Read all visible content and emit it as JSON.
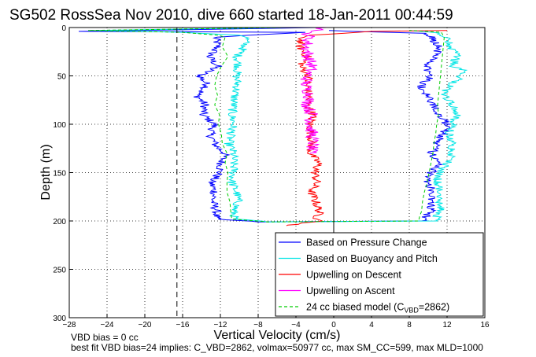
{
  "chart_data": {
    "type": "line",
    "title": "SG502 RossSea Nov 2010, dive 660 started 18-Jan-2011 00:44:59",
    "xlabel": "Vertical Velocity (cm/s)",
    "ylabel": "Depth (m)",
    "xlim": [
      -28,
      16
    ],
    "ylim": [
      300,
      0
    ],
    "y_reversed": true,
    "grid": true,
    "x_ticks": [
      -28,
      -24,
      -20,
      -16,
      -12,
      -8,
      -4,
      0,
      4,
      8,
      12,
      16
    ],
    "y_ticks": [
      0,
      50,
      100,
      150,
      200,
      250,
      300
    ],
    "reference_lines": [
      {
        "axis": "x",
        "value": -16.6,
        "style": "dashed",
        "color": "#000000"
      },
      {
        "axis": "x",
        "value": 0,
        "style": "solid",
        "color": "#000000"
      }
    ],
    "legend_position": "bottom-right",
    "legend": [
      {
        "label": "Based on Pressure Change",
        "color": "#0000ff",
        "style": "solid"
      },
      {
        "label": "Based on Buoyancy and Pitch",
        "color": "#00e5e5",
        "style": "solid"
      },
      {
        "label": "Upwelling on Descent",
        "color": "#ff0000",
        "style": "solid"
      },
      {
        "label": "Upwelling on Ascent",
        "color": "#ff00ff",
        "style": "solid"
      },
      {
        "label_main": "24 cc biased model (C",
        "label_sub": "VBD",
        "label_end": "=2862)",
        "color": "#00cc00",
        "style": "dashed"
      }
    ],
    "series": [
      {
        "color": "#0000ff",
        "y": [
          0,
          4,
          5,
          8,
          10,
          20,
          30,
          40,
          50,
          60,
          70,
          80,
          90,
          100,
          110,
          120,
          125,
          130,
          140,
          150,
          160,
          170,
          180,
          190,
          198,
          201,
          200,
          195,
          190,
          180,
          170,
          160,
          150,
          140,
          130,
          120,
          110,
          100,
          90,
          80,
          70,
          60,
          50,
          40,
          30,
          20,
          10,
          6,
          4,
          3
        ],
        "x": [
          -1.5,
          -27,
          -3,
          -9,
          -12.5,
          -12.3,
          -13.2,
          -12.3,
          -14.2,
          -13.3,
          -14.5,
          -13.6,
          -13.9,
          -12.6,
          -13.1,
          -12.6,
          -12.2,
          -11.5,
          -11.9,
          -12.1,
          -13.0,
          -12.6,
          -12.8,
          -12.4,
          -12.5,
          -8,
          9.5,
          9.8,
          10.3,
          10.2,
          10.6,
          9.9,
          10.3,
          11.1,
          10.4,
          10.8,
          11.6,
          12.1,
          11.2,
          10.6,
          10.0,
          9.2,
          10.3,
          9.8,
          10.6,
          11.2,
          10.3,
          9.8,
          2,
          -0.5
        ]
      },
      {
        "color": "#00e5e5",
        "y": [
          0,
          3,
          5,
          8,
          10,
          20,
          30,
          40,
          50,
          60,
          70,
          80,
          90,
          100,
          110,
          120,
          130,
          140,
          150,
          160,
          170,
          180,
          190,
          198,
          201,
          200,
          195,
          190,
          180,
          170,
          160,
          150,
          140,
          130,
          120,
          110,
          100,
          90,
          80,
          70,
          60,
          50,
          45,
          40,
          30,
          20,
          10,
          5,
          3
        ],
        "x": [
          -5,
          -25,
          -16,
          -10,
          -9.2,
          -9.5,
          -10.2,
          -10.1,
          -10.3,
          -10.2,
          -10.5,
          -10.6,
          -10.8,
          -10.6,
          -10.9,
          -11.1,
          -10.6,
          -10.6,
          -10.6,
          -10.8,
          -10.3,
          -10.1,
          -10.6,
          -10.5,
          -7,
          10.8,
          11.0,
          11.4,
          11.3,
          11.2,
          11.0,
          11.2,
          12.1,
          12.6,
          12.6,
          12.2,
          12.6,
          13.0,
          12.6,
          11.6,
          12.3,
          13.6,
          14.0,
          12.7,
          13.0,
          12.4,
          11.8,
          10.5,
          8
        ]
      },
      {
        "color": "#ff0000",
        "y": [
          3,
          4,
          6,
          8,
          10,
          20,
          30,
          40,
          50,
          60,
          70,
          80,
          90,
          100,
          110,
          120,
          130,
          140,
          150,
          160,
          170,
          180,
          190,
          198,
          200,
          202,
          205
        ],
        "x": [
          12,
          4,
          1,
          -2.5,
          -3.4,
          -3.6,
          -2.8,
          -3.5,
          -2.6,
          -2.9,
          -2.6,
          -2.8,
          -2.2,
          -2.5,
          -2.4,
          -2.3,
          -2.5,
          -1.6,
          -2.0,
          -1.8,
          -2.4,
          -1.9,
          -1.5,
          -1.8,
          -1.2,
          -3,
          -5
        ]
      },
      {
        "color": "#ff00ff",
        "y": [
          0,
          3,
          5,
          10,
          20,
          30,
          40,
          50,
          60,
          70,
          80,
          90,
          100,
          110,
          120,
          130
        ],
        "x": [
          -1,
          -2,
          -2.8,
          -2.6,
          -2.9,
          -2.7,
          -2.3,
          -2.8,
          -3.0,
          -2.5,
          -2.8,
          -2.3,
          -2.5,
          -2.3,
          -2.2,
          -2.5
        ]
      },
      {
        "color": "#00cc00",
        "dashed": true,
        "y": [
          0,
          3,
          5,
          8,
          10,
          20,
          30,
          40,
          50,
          60,
          70,
          80,
          90,
          100,
          110,
          120,
          130,
          140,
          150,
          160,
          170,
          180,
          190,
          198,
          201,
          200,
          195,
          190,
          180,
          170,
          160,
          150,
          140,
          130,
          120,
          110,
          100,
          90,
          80,
          70,
          60,
          50,
          40,
          30,
          20,
          10,
          5,
          3
        ],
        "x": [
          -5,
          -26,
          -16,
          -12.2,
          -11.5,
          -11.8,
          -11.2,
          -11.9,
          -12.4,
          -12.6,
          -12.3,
          -12.6,
          -12.1,
          -12.2,
          -11.9,
          -11.8,
          -11.3,
          -11.5,
          -11.2,
          -11.3,
          -11.3,
          -11.0,
          -10.9,
          -10.8,
          -7,
          9.0,
          9.1,
          9.3,
          9.4,
          9.6,
          9.9,
          10.1,
          10.3,
          10.5,
          10.6,
          10.8,
          10.9,
          11.1,
          11.0,
          11.1,
          11.2,
          11.3,
          11.4,
          11.5,
          11.6,
          11.7,
          11.4,
          8
        ]
      }
    ]
  },
  "notes": {
    "line1": "VBD bias = 0 cc",
    "line2": "best fit VBD bias=24 implies: C_VBD=2862, volmax=50977 cc, max SM_CC=599, max MLD=1000"
  }
}
